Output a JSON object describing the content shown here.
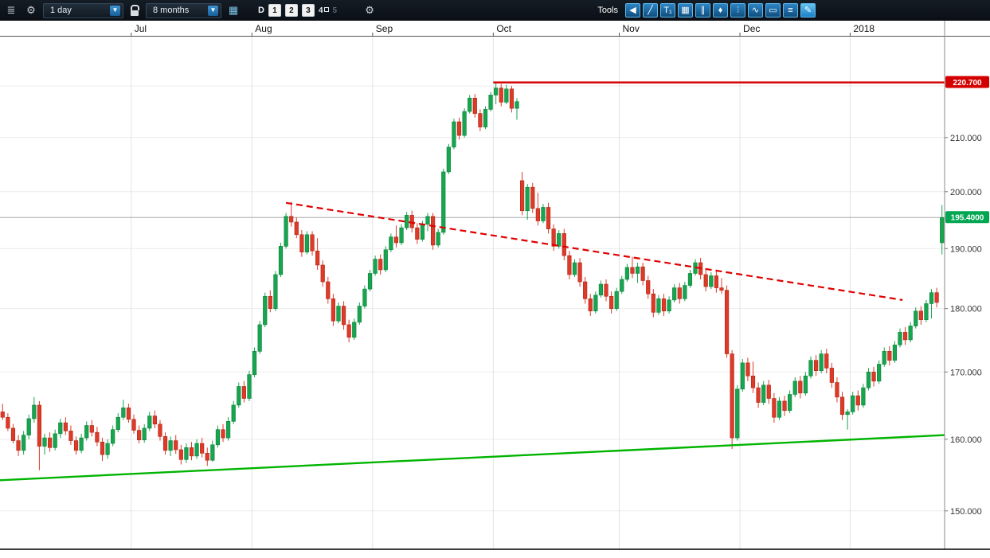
{
  "toolbar": {
    "timeframe_value": "1 day",
    "range_value": "8 months",
    "period_mode_label": "D",
    "period_buttons": [
      "1",
      "2",
      "3",
      "4",
      "5"
    ],
    "tools_label": "Tools",
    "tool_icons": [
      {
        "name": "collapse-tools",
        "glyph": "◀"
      },
      {
        "name": "trendline-tool",
        "glyph": "╱"
      },
      {
        "name": "text-tool",
        "glyph": "T₁"
      },
      {
        "name": "grid-tool",
        "glyph": "▦"
      },
      {
        "name": "channel-tool",
        "glyph": "∥"
      },
      {
        "name": "marker-tool",
        "glyph": "♦"
      },
      {
        "name": "bars-tool",
        "glyph": "⫶"
      },
      {
        "name": "wave-tool",
        "glyph": "∿"
      },
      {
        "name": "shape-tool",
        "glyph": "▭"
      },
      {
        "name": "print-tool",
        "glyph": "≡"
      },
      {
        "name": "draw-tool",
        "glyph": "✎"
      }
    ]
  },
  "chart_data": {
    "type": "candlestick",
    "scale": "log",
    "grid": true,
    "x_axis_position": "top",
    "y_axis_position": "right",
    "price_range": [
      144.9,
      230.0
    ],
    "last_price": 195.4,
    "colors": {
      "up": "#17a54f",
      "down": "#dd3a28",
      "up_border": "#0c7f3a",
      "down_border": "#b02718"
    },
    "x_months": [
      {
        "label": "Jul",
        "index": 25
      },
      {
        "label": "Aug",
        "index": 48
      },
      {
        "label": "Sep",
        "index": 71
      },
      {
        "label": "Oct",
        "index": 94
      },
      {
        "label": "Nov",
        "index": 118
      },
      {
        "label": "Dec",
        "index": 141
      },
      {
        "label": "2018",
        "index": 162
      }
    ],
    "y_gridlines": [
      220,
      210,
      200,
      190,
      180,
      170,
      160,
      150
    ],
    "y_ticks": [
      {
        "price": 210,
        "label": "210.000"
      },
      {
        "price": 200,
        "label": "200.000"
      },
      {
        "price": 190,
        "label": "190.000"
      },
      {
        "price": 180,
        "label": "180.000"
      },
      {
        "price": 170,
        "label": "170.000"
      },
      {
        "price": 160,
        "label": "160.000"
      },
      {
        "price": 150,
        "label": "150.000"
      }
    ],
    "price_tags": [
      {
        "name": "resistance",
        "label": "220.700",
        "price": 220.7,
        "color": "#d40000"
      },
      {
        "name": "last",
        "label": "195.4000",
        "price": 195.4,
        "color": "#00a651"
      }
    ],
    "lines": [
      {
        "name": "resistance",
        "type": "horizontal",
        "price": 220.7,
        "from_index": 94,
        "style": "solid",
        "color": "#d40000",
        "width": 2.4
      },
      {
        "name": "downtrend",
        "type": "segment",
        "from": {
          "index": 54,
          "price": 198.0
        },
        "to": {
          "index": 171.5,
          "price": 181.4
        },
        "style": "dashed",
        "color": "#e00000",
        "width": 2.2
      },
      {
        "name": "uptrend",
        "type": "segment",
        "from": {
          "index": -0.5,
          "price": 154.2
        },
        "to": {
          "index": 179.8,
          "price": 160.6
        },
        "style": "solid",
        "color": "#00b400",
        "width": 2.4
      }
    ],
    "candles": [
      [
        164.0,
        165.2,
        162.8,
        163.2
      ],
      [
        163.2,
        163.8,
        161.2,
        161.6
      ],
      [
        161.6,
        162.2,
        159.4,
        159.8
      ],
      [
        159.8,
        160.6,
        157.6,
        158.4
      ],
      [
        158.4,
        161.2,
        157.8,
        160.6
      ],
      [
        160.6,
        163.6,
        160.0,
        163.0
      ],
      [
        163.0,
        166.2,
        162.4,
        165.0
      ],
      [
        165.0,
        165.6,
        155.6,
        159.0
      ],
      [
        159.0,
        160.8,
        157.8,
        160.2
      ],
      [
        160.2,
        161.0,
        158.2,
        158.8
      ],
      [
        158.8,
        161.4,
        158.4,
        160.8
      ],
      [
        160.8,
        163.0,
        160.2,
        162.4
      ],
      [
        162.4,
        163.2,
        160.6,
        161.2
      ],
      [
        161.2,
        162.0,
        159.2,
        159.8
      ],
      [
        159.8,
        160.4,
        157.8,
        158.4
      ],
      [
        158.4,
        160.8,
        158.0,
        160.2
      ],
      [
        160.2,
        162.6,
        159.8,
        162.0
      ],
      [
        162.0,
        162.8,
        160.4,
        161.0
      ],
      [
        161.0,
        161.8,
        159.0,
        159.6
      ],
      [
        159.6,
        160.2,
        156.9,
        157.8
      ],
      [
        157.8,
        160.0,
        157.2,
        159.4
      ],
      [
        159.4,
        162.0,
        159.0,
        161.4
      ],
      [
        161.4,
        163.8,
        161.0,
        163.2
      ],
      [
        163.2,
        165.8,
        162.8,
        164.6
      ],
      [
        164.6,
        165.2,
        162.4,
        162.9
      ],
      [
        162.9,
        163.6,
        160.8,
        161.3
      ],
      [
        161.3,
        162.0,
        159.4,
        159.9
      ],
      [
        159.9,
        162.2,
        159.5,
        161.6
      ],
      [
        161.6,
        164.0,
        161.2,
        163.4
      ],
      [
        163.4,
        164.2,
        161.6,
        162.2
      ],
      [
        162.2,
        162.8,
        159.8,
        160.4
      ],
      [
        160.4,
        161.0,
        157.8,
        158.4
      ],
      [
        158.4,
        160.4,
        157.6,
        159.8
      ],
      [
        159.8,
        160.6,
        157.9,
        158.5
      ],
      [
        158.5,
        159.2,
        156.4,
        157.1
      ],
      [
        157.1,
        159.4,
        156.6,
        158.8
      ],
      [
        158.8,
        159.6,
        157.0,
        157.6
      ],
      [
        157.6,
        160.0,
        157.2,
        159.4
      ],
      [
        159.4,
        160.2,
        157.4,
        158.0
      ],
      [
        158.0,
        158.8,
        156.2,
        157.0
      ],
      [
        157.0,
        159.8,
        156.8,
        159.2
      ],
      [
        159.2,
        162.0,
        158.8,
        161.4
      ],
      [
        161.4,
        162.2,
        159.6,
        160.2
      ],
      [
        160.2,
        163.2,
        159.8,
        162.6
      ],
      [
        162.6,
        165.6,
        162.2,
        165.0
      ],
      [
        165.0,
        168.4,
        164.6,
        167.8
      ],
      [
        167.8,
        168.6,
        165.4,
        166.0
      ],
      [
        166.0,
        170.2,
        165.6,
        169.6
      ],
      [
        169.6,
        173.8,
        169.2,
        173.2
      ],
      [
        173.2,
        178.0,
        172.8,
        177.4
      ],
      [
        177.4,
        182.6,
        177.0,
        182.0
      ],
      [
        182.0,
        183.0,
        179.4,
        180.0
      ],
      [
        180.0,
        186.2,
        179.6,
        185.6
      ],
      [
        185.6,
        191.0,
        185.2,
        190.4
      ],
      [
        190.4,
        196.2,
        190.0,
        195.6
      ],
      [
        195.6,
        198.2,
        193.8,
        194.6
      ],
      [
        194.6,
        195.4,
        191.8,
        192.4
      ],
      [
        192.4,
        193.2,
        188.6,
        189.4
      ],
      [
        189.4,
        193.0,
        189.0,
        192.4
      ],
      [
        192.4,
        193.0,
        188.8,
        189.6
      ],
      [
        189.6,
        191.8,
        186.4,
        187.2
      ],
      [
        187.2,
        188.0,
        183.6,
        184.4
      ],
      [
        184.4,
        185.2,
        180.8,
        181.6
      ],
      [
        181.6,
        182.4,
        177.2,
        178.0
      ],
      [
        178.0,
        181.0,
        177.6,
        180.4
      ],
      [
        180.4,
        181.2,
        176.6,
        177.4
      ],
      [
        177.4,
        178.2,
        174.6,
        175.4
      ],
      [
        175.4,
        178.4,
        175.0,
        177.8
      ],
      [
        177.8,
        181.0,
        177.4,
        180.4
      ],
      [
        180.4,
        183.8,
        180.0,
        183.2
      ],
      [
        183.2,
        186.4,
        182.8,
        185.8
      ],
      [
        185.8,
        188.8,
        185.4,
        188.2
      ],
      [
        188.2,
        189.0,
        185.6,
        186.4
      ],
      [
        186.4,
        190.4,
        186.0,
        189.8
      ],
      [
        189.8,
        192.6,
        189.4,
        192.0
      ],
      [
        192.0,
        194.0,
        190.2,
        191.0
      ],
      [
        191.0,
        194.2,
        190.6,
        193.6
      ],
      [
        193.6,
        196.4,
        193.2,
        195.8
      ],
      [
        195.8,
        196.6,
        192.8,
        193.6
      ],
      [
        193.6,
        194.4,
        190.8,
        191.6
      ],
      [
        191.6,
        194.8,
        191.2,
        194.2
      ],
      [
        194.2,
        196.2,
        193.0,
        195.6
      ],
      [
        195.6,
        196.2,
        189.8,
        190.6
      ],
      [
        190.6,
        193.4,
        190.2,
        192.8
      ],
      [
        192.8,
        204.2,
        192.4,
        203.6
      ],
      [
        203.6,
        208.8,
        203.2,
        208.2
      ],
      [
        208.2,
        213.6,
        207.8,
        213.0
      ],
      [
        213.0,
        213.8,
        209.6,
        210.4
      ],
      [
        210.4,
        215.6,
        210.0,
        215.0
      ],
      [
        215.0,
        218.2,
        214.6,
        217.6
      ],
      [
        217.6,
        218.4,
        213.8,
        214.6
      ],
      [
        214.6,
        215.4,
        211.2,
        212.0
      ],
      [
        212.0,
        216.0,
        211.6,
        215.4
      ],
      [
        215.4,
        218.8,
        215.0,
        218.2
      ],
      [
        218.2,
        220.7,
        216.4,
        219.6
      ],
      [
        219.6,
        220.4,
        216.0,
        216.8
      ],
      [
        216.8,
        220.2,
        216.4,
        219.4
      ],
      [
        219.4,
        220.0,
        214.8,
        215.6
      ],
      [
        215.6,
        217.6,
        213.4,
        216.9
      ],
      [
        202.0,
        203.6,
        195.8,
        196.6
      ],
      [
        196.6,
        201.4,
        195.0,
        200.8
      ],
      [
        200.8,
        201.6,
        196.2,
        197.0
      ],
      [
        197.0,
        199.8,
        194.0,
        194.8
      ],
      [
        194.8,
        197.8,
        194.4,
        197.2
      ],
      [
        197.2,
        198.0,
        192.6,
        193.4
      ],
      [
        193.4,
        194.2,
        189.6,
        190.4
      ],
      [
        190.4,
        193.2,
        190.0,
        192.6
      ],
      [
        192.6,
        193.4,
        188.0,
        188.8
      ],
      [
        188.8,
        189.6,
        184.8,
        185.6
      ],
      [
        185.6,
        188.2,
        185.2,
        187.6
      ],
      [
        187.6,
        188.4,
        183.6,
        184.4
      ],
      [
        184.4,
        185.2,
        180.8,
        181.6
      ],
      [
        181.6,
        182.4,
        178.8,
        179.6
      ],
      [
        179.6,
        182.8,
        179.2,
        182.2
      ],
      [
        182.2,
        184.6,
        181.8,
        184.0
      ],
      [
        184.0,
        184.8,
        181.2,
        182.0
      ],
      [
        182.0,
        182.8,
        179.2,
        180.0
      ],
      [
        180.0,
        183.4,
        179.6,
        182.8
      ],
      [
        182.8,
        185.4,
        182.4,
        184.8
      ],
      [
        184.8,
        187.4,
        184.4,
        186.8
      ],
      [
        186.8,
        188.6,
        185.0,
        185.8
      ],
      [
        185.8,
        187.6,
        184.2,
        186.9
      ],
      [
        186.9,
        187.6,
        183.8,
        184.6
      ],
      [
        184.6,
        185.4,
        181.6,
        182.4
      ],
      [
        182.4,
        183.2,
        178.6,
        179.4
      ],
      [
        179.4,
        182.2,
        179.0,
        181.6
      ],
      [
        181.6,
        182.4,
        178.8,
        179.6
      ],
      [
        179.6,
        182.0,
        179.2,
        181.4
      ],
      [
        181.4,
        184.0,
        181.0,
        183.4
      ],
      [
        183.4,
        184.2,
        180.8,
        181.6
      ],
      [
        181.6,
        184.4,
        181.2,
        183.8
      ],
      [
        183.8,
        186.4,
        183.4,
        185.8
      ],
      [
        185.8,
        188.2,
        185.4,
        187.6
      ],
      [
        187.6,
        188.4,
        184.8,
        185.6
      ],
      [
        185.6,
        186.4,
        182.8,
        183.6
      ],
      [
        183.6,
        186.0,
        183.2,
        185.4
      ],
      [
        185.4,
        186.2,
        182.6,
        183.4
      ],
      [
        183.4,
        185.0,
        182.4,
        183.0
      ],
      [
        183.0,
        183.8,
        172.2,
        172.8
      ],
      [
        172.8,
        173.4,
        158.6,
        160.2
      ],
      [
        160.2,
        168.0,
        159.8,
        167.4
      ],
      [
        167.4,
        172.0,
        167.0,
        171.4
      ],
      [
        171.4,
        172.2,
        168.6,
        169.4
      ],
      [
        169.4,
        171.6,
        166.8,
        167.6
      ],
      [
        167.6,
        168.4,
        164.6,
        165.4
      ],
      [
        165.4,
        168.6,
        165.0,
        168.0
      ],
      [
        168.0,
        168.8,
        165.2,
        166.0
      ],
      [
        166.0,
        166.8,
        162.4,
        163.2
      ],
      [
        163.2,
        166.2,
        162.8,
        165.6
      ],
      [
        165.6,
        166.4,
        163.4,
        164.2
      ],
      [
        164.2,
        167.2,
        163.8,
        166.6
      ],
      [
        166.6,
        169.2,
        166.2,
        168.6
      ],
      [
        168.6,
        169.4,
        166.0,
        166.8
      ],
      [
        166.8,
        170.0,
        166.4,
        169.4
      ],
      [
        169.4,
        172.4,
        169.0,
        171.8
      ],
      [
        171.8,
        172.6,
        169.4,
        170.2
      ],
      [
        170.2,
        173.4,
        169.8,
        172.8
      ],
      [
        172.8,
        173.6,
        169.8,
        170.6
      ],
      [
        170.6,
        171.4,
        167.6,
        168.4
      ],
      [
        168.4,
        169.2,
        165.4,
        166.2
      ],
      [
        166.2,
        167.0,
        162.8,
        163.6
      ],
      [
        163.6,
        164.4,
        161.4,
        164.0
      ],
      [
        164.0,
        167.0,
        163.6,
        166.4
      ],
      [
        166.4,
        167.2,
        164.2,
        165.0
      ],
      [
        165.0,
        168.2,
        164.6,
        167.6
      ],
      [
        167.6,
        170.6,
        167.2,
        170.0
      ],
      [
        170.0,
        170.8,
        167.8,
        168.6
      ],
      [
        168.6,
        171.8,
        168.2,
        171.2
      ],
      [
        171.2,
        173.8,
        170.8,
        173.2
      ],
      [
        173.2,
        174.0,
        171.0,
        171.8
      ],
      [
        171.8,
        174.8,
        171.4,
        174.2
      ],
      [
        174.2,
        176.8,
        173.8,
        176.2
      ],
      [
        176.2,
        177.0,
        174.2,
        175.0
      ],
      [
        175.0,
        177.8,
        174.6,
        177.2
      ],
      [
        177.2,
        180.2,
        176.8,
        179.6
      ],
      [
        179.6,
        180.4,
        177.4,
        178.2
      ],
      [
        178.2,
        181.4,
        177.8,
        180.8
      ],
      [
        180.8,
        183.2,
        178.4,
        182.6
      ],
      [
        182.6,
        183.4,
        180.2,
        181.0
      ],
      [
        191.0,
        197.6,
        189.0,
        195.4
      ]
    ]
  }
}
